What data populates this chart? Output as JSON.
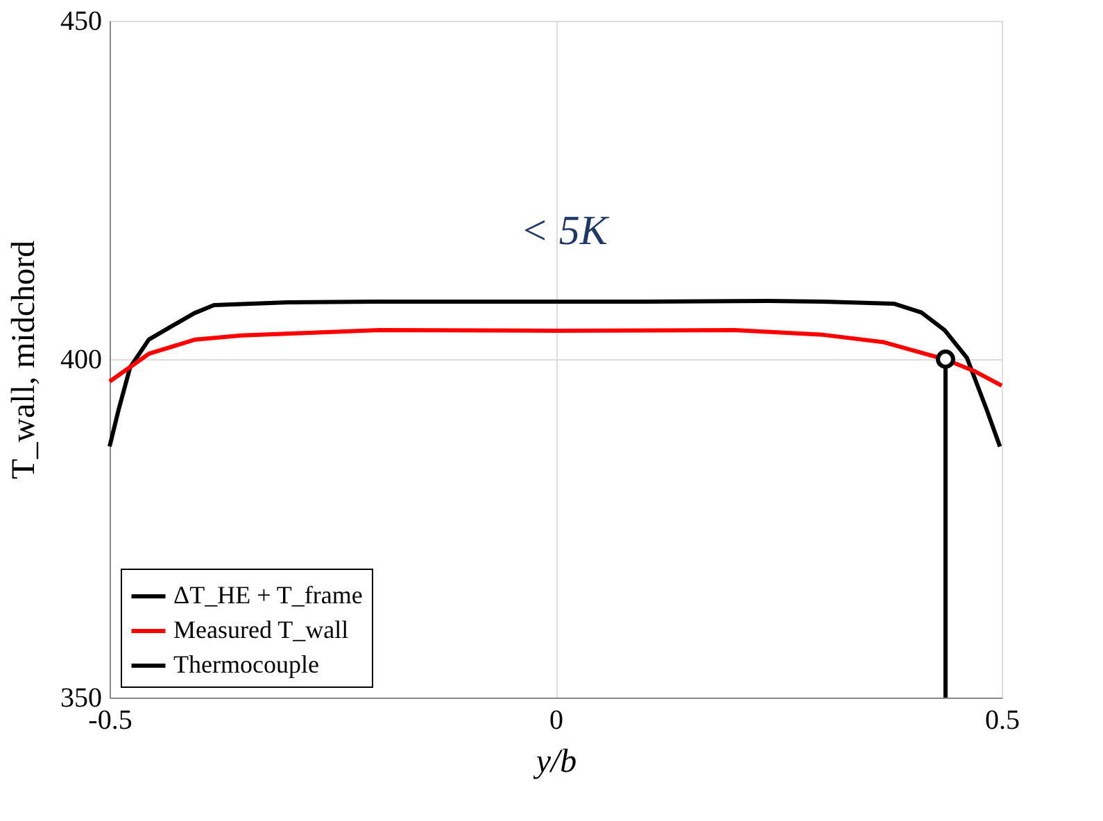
{
  "chart_data": {
    "type": "line",
    "xlabel": "y/b",
    "ylabel": "T_wall, midchord",
    "xlim": [
      -0.5,
      0.5
    ],
    "xticks": [
      -0.5,
      0,
      0.5
    ],
    "ylim": [
      350,
      450
    ],
    "yticks": [
      350,
      400,
      450
    ],
    "grid": true,
    "legend": "bottom left",
    "line_style": "solid",
    "annotations": [
      "< 5K"
    ],
    "series": [
      {
        "name": "ΔT_HE + T_frame",
        "color": "#000000",
        "x": [
          -0.5,
          -0.49,
          -0.477,
          -0.456,
          -0.43,
          -0.405,
          -0.383,
          -0.3,
          -0.2,
          -0.1,
          0,
          0.1,
          0.239,
          0.3,
          0.379,
          0.41,
          0.436,
          0.461,
          0.483,
          0.498
        ],
        "values": [
          387.1,
          392.5,
          398.8,
          402.9,
          404.9,
          406.8,
          408,
          408.4,
          408.5,
          408.5,
          408.5,
          408.5,
          408.6,
          408.5,
          408.2,
          406.9,
          404.3,
          400.2,
          392.6,
          387.1
        ]
      },
      {
        "name": "Measured T_wall",
        "color": "#ff0000",
        "x": [
          -0.5,
          -0.456,
          -0.404,
          -0.352,
          -0.197,
          0,
          0.2,
          0.3,
          0.368,
          0.436,
          0.47,
          0.5
        ],
        "values": [
          396.7,
          400.8,
          402.9,
          403.5,
          404.3,
          404.2,
          404.3,
          403.6,
          402.5,
          400,
          398.2,
          396.1
        ]
      },
      {
        "name": "Thermocouple",
        "type": "lollipop",
        "color": "#000000",
        "marker": "circle",
        "x": [
          0.437
        ],
        "values": [
          400
        ]
      }
    ]
  }
}
